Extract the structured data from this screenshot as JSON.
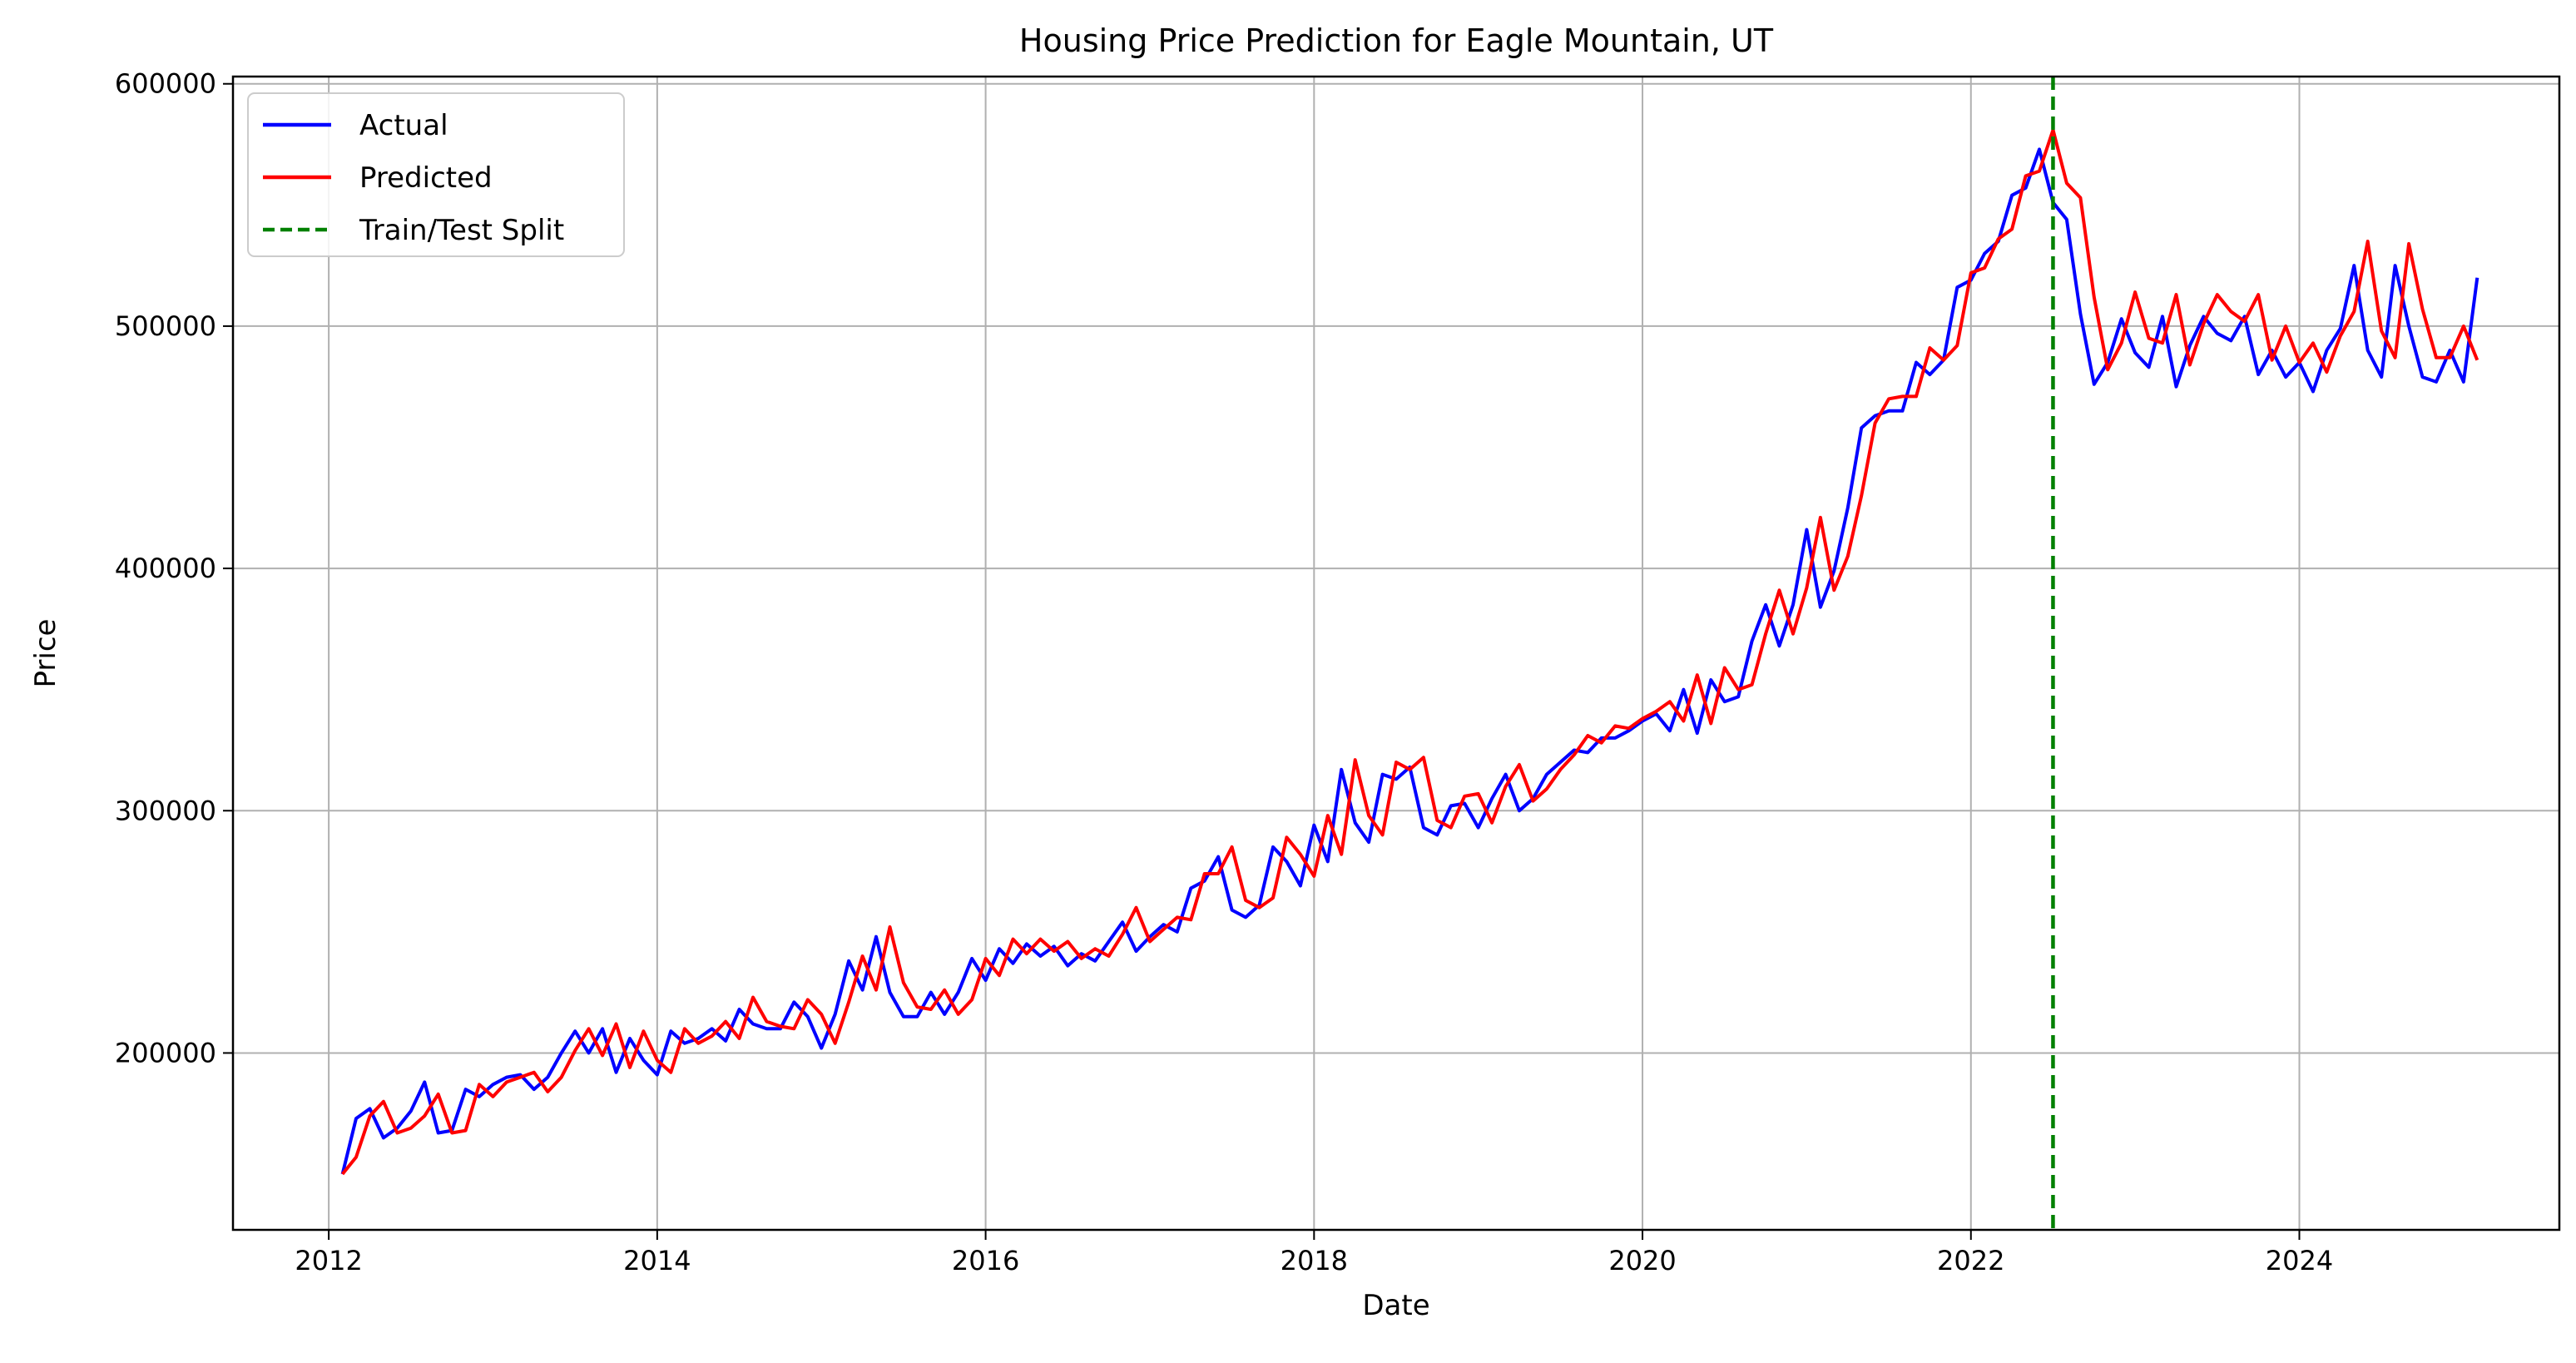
{
  "chart_data": {
    "type": "line",
    "title": "Housing Price Prediction for Eagle Mountain, UT",
    "xlabel": "Date",
    "ylabel": "Price",
    "xlim": [
      "2011-06",
      "2025-08"
    ],
    "ylim": [
      127000,
      603000
    ],
    "x_ticks": [
      "2012",
      "2014",
      "2016",
      "2018",
      "2020",
      "2022",
      "2024"
    ],
    "y_ticks": [
      200000,
      300000,
      400000,
      500000,
      600000
    ],
    "grid": true,
    "legend_position": "top-left",
    "split_line": {
      "name": "Train/Test Split",
      "x": "2022-07",
      "color": "#008000",
      "style": "dashed"
    },
    "series": [
      {
        "name": "Actual",
        "color": "#0000ff",
        "x": [
          "2012-02",
          "2012-03",
          "2012-04",
          "2012-05",
          "2012-06",
          "2012-07",
          "2012-08",
          "2012-09",
          "2012-10",
          "2012-11",
          "2012-12",
          "2013-01",
          "2013-02",
          "2013-03",
          "2013-04",
          "2013-05",
          "2013-06",
          "2013-07",
          "2013-08",
          "2013-09",
          "2013-10",
          "2013-11",
          "2013-12",
          "2014-01",
          "2014-02",
          "2014-03",
          "2014-04",
          "2014-05",
          "2014-06",
          "2014-07",
          "2014-08",
          "2014-09",
          "2014-10",
          "2014-11",
          "2014-12",
          "2015-01",
          "2015-02",
          "2015-03",
          "2015-04",
          "2015-05",
          "2015-06",
          "2015-07",
          "2015-08",
          "2015-09",
          "2015-10",
          "2015-11",
          "2015-12",
          "2016-01",
          "2016-02",
          "2016-03",
          "2016-04",
          "2016-05",
          "2016-06",
          "2016-07",
          "2016-08",
          "2016-09",
          "2016-10",
          "2016-11",
          "2016-12",
          "2017-01",
          "2017-02",
          "2017-03",
          "2017-04",
          "2017-05",
          "2017-06",
          "2017-07",
          "2017-08",
          "2017-09",
          "2017-10",
          "2017-11",
          "2017-12",
          "2018-01",
          "2018-02",
          "2018-03",
          "2018-04",
          "2018-05",
          "2018-06",
          "2018-07",
          "2018-08",
          "2018-09",
          "2018-10",
          "2018-11",
          "2018-12",
          "2019-01",
          "2019-02",
          "2019-03",
          "2019-04",
          "2019-05",
          "2019-06",
          "2019-07",
          "2019-08",
          "2019-09",
          "2019-10",
          "2019-11",
          "2019-12",
          "2020-01",
          "2020-02",
          "2020-03",
          "2020-04",
          "2020-05",
          "2020-06",
          "2020-07",
          "2020-08",
          "2020-09",
          "2020-10",
          "2020-11",
          "2020-12",
          "2021-01",
          "2021-02",
          "2021-03",
          "2021-04",
          "2021-05",
          "2021-06",
          "2021-07",
          "2021-08",
          "2021-09",
          "2021-10",
          "2021-11",
          "2021-12",
          "2022-01",
          "2022-02",
          "2022-03",
          "2022-04",
          "2022-05",
          "2022-06",
          "2022-07",
          "2022-08",
          "2022-09",
          "2022-10",
          "2022-11",
          "2022-12",
          "2023-01",
          "2023-02",
          "2023-03",
          "2023-04",
          "2023-05",
          "2023-06",
          "2023-07",
          "2023-08",
          "2023-09",
          "2023-10",
          "2023-11",
          "2023-12",
          "2024-01",
          "2024-02",
          "2024-03",
          "2024-04",
          "2024-05",
          "2024-06",
          "2024-07",
          "2024-08",
          "2024-09",
          "2024-10",
          "2024-11",
          "2024-12",
          "2025-01",
          "2025-02"
        ],
        "values": [
          150000,
          173000,
          177000,
          165000,
          169000,
          176000,
          188000,
          167000,
          168000,
          185000,
          182000,
          187000,
          190000,
          191000,
          185000,
          190000,
          200000,
          209000,
          200000,
          210000,
          192000,
          206000,
          197000,
          191000,
          209000,
          204000,
          206000,
          210000,
          205000,
          218000,
          212000,
          210000,
          210000,
          221000,
          215000,
          202000,
          216000,
          238000,
          226000,
          248000,
          225000,
          215000,
          215000,
          225000,
          216000,
          225000,
          239000,
          230000,
          243000,
          237000,
          245000,
          240000,
          244000,
          236000,
          241000,
          238000,
          246000,
          254000,
          242000,
          248000,
          253000,
          250000,
          268000,
          271000,
          281000,
          259000,
          256000,
          261000,
          285000,
          279000,
          269000,
          294000,
          279000,
          317000,
          295000,
          287000,
          315000,
          313000,
          318000,
          293000,
          290000,
          302000,
          303000,
          293000,
          305000,
          315000,
          300000,
          305000,
          315000,
          320000,
          325000,
          324000,
          330000,
          330000,
          333000,
          337000,
          340000,
          333000,
          350000,
          332000,
          354000,
          345000,
          347000,
          370000,
          385000,
          368000,
          385000,
          416000,
          384000,
          399000,
          425000,
          458000,
          463000,
          465000,
          465000,
          485000,
          480000,
          486000,
          516000,
          519000,
          530000,
          535000,
          554000,
          557000,
          573000,
          551000,
          544000,
          505000,
          476000,
          485000,
          503000,
          489000,
          483000,
          504000,
          475000,
          492000,
          504000,
          497000,
          494000,
          504000,
          480000,
          490000,
          479000,
          485000,
          473000,
          490000,
          499000,
          525000,
          490000,
          479000,
          525000,
          500000,
          479000,
          477000,
          490000,
          477000,
          520000
        ]
      },
      {
        "name": "Predicted",
        "color": "#ff0000",
        "x": [
          "2012-02",
          "2012-03",
          "2012-04",
          "2012-05",
          "2012-06",
          "2012-07",
          "2012-08",
          "2012-09",
          "2012-10",
          "2012-11",
          "2012-12",
          "2013-01",
          "2013-02",
          "2013-03",
          "2013-04",
          "2013-05",
          "2013-06",
          "2013-07",
          "2013-08",
          "2013-09",
          "2013-10",
          "2013-11",
          "2013-12",
          "2014-01",
          "2014-02",
          "2014-03",
          "2014-04",
          "2014-05",
          "2014-06",
          "2014-07",
          "2014-08",
          "2014-09",
          "2014-10",
          "2014-11",
          "2014-12",
          "2015-01",
          "2015-02",
          "2015-03",
          "2015-04",
          "2015-05",
          "2015-06",
          "2015-07",
          "2015-08",
          "2015-09",
          "2015-10",
          "2015-11",
          "2015-12",
          "2016-01",
          "2016-02",
          "2016-03",
          "2016-04",
          "2016-05",
          "2016-06",
          "2016-07",
          "2016-08",
          "2016-09",
          "2016-10",
          "2016-11",
          "2016-12",
          "2017-01",
          "2017-02",
          "2017-03",
          "2017-04",
          "2017-05",
          "2017-06",
          "2017-07",
          "2017-08",
          "2017-09",
          "2017-10",
          "2017-11",
          "2017-12",
          "2018-01",
          "2018-02",
          "2018-03",
          "2018-04",
          "2018-05",
          "2018-06",
          "2018-07",
          "2018-08",
          "2018-09",
          "2018-10",
          "2018-11",
          "2018-12",
          "2019-01",
          "2019-02",
          "2019-03",
          "2019-04",
          "2019-05",
          "2019-06",
          "2019-07",
          "2019-08",
          "2019-09",
          "2019-10",
          "2019-11",
          "2019-12",
          "2020-01",
          "2020-02",
          "2020-03",
          "2020-04",
          "2020-05",
          "2020-06",
          "2020-07",
          "2020-08",
          "2020-09",
          "2020-10",
          "2020-11",
          "2020-12",
          "2021-01",
          "2021-02",
          "2021-03",
          "2021-04",
          "2021-05",
          "2021-06",
          "2021-07",
          "2021-08",
          "2021-09",
          "2021-10",
          "2021-11",
          "2021-12",
          "2022-01",
          "2022-02",
          "2022-03",
          "2022-04",
          "2022-05",
          "2022-06",
          "2022-07",
          "2022-08",
          "2022-09",
          "2022-10",
          "2022-11",
          "2022-12",
          "2023-01",
          "2023-02",
          "2023-03",
          "2023-04",
          "2023-05",
          "2023-06",
          "2023-07",
          "2023-08",
          "2023-09",
          "2023-10",
          "2023-11",
          "2023-12",
          "2024-01",
          "2024-02",
          "2024-03",
          "2024-04",
          "2024-05",
          "2024-06",
          "2024-07",
          "2024-08",
          "2024-09",
          "2024-10",
          "2024-11",
          "2024-12",
          "2025-01",
          "2025-02"
        ],
        "values": [
          150000,
          157000,
          174000,
          180000,
          167000,
          169000,
          174000,
          183000,
          167000,
          168000,
          187000,
          182000,
          188000,
          190000,
          192000,
          184000,
          190000,
          201000,
          210000,
          199000,
          212000,
          194000,
          209000,
          197000,
          192000,
          210000,
          204000,
          207000,
          213000,
          206000,
          223000,
          213000,
          211000,
          210000,
          222000,
          216000,
          204000,
          221000,
          240000,
          226000,
          252000,
          229000,
          219000,
          218000,
          226000,
          216000,
          222000,
          239000,
          232000,
          247000,
          241000,
          247000,
          242000,
          246000,
          239000,
          243000,
          240000,
          249000,
          260000,
          246000,
          251000,
          256000,
          255000,
          274000,
          274000,
          285000,
          263000,
          260000,
          264000,
          289000,
          282000,
          273000,
          298000,
          282000,
          321000,
          298000,
          290000,
          320000,
          317000,
          322000,
          296000,
          293000,
          306000,
          307000,
          295000,
          310000,
          319000,
          304000,
          309000,
          317000,
          323000,
          331000,
          328000,
          335000,
          334000,
          338000,
          341000,
          345000,
          337000,
          356000,
          336000,
          359000,
          350000,
          352000,
          373000,
          391000,
          373000,
          392000,
          421000,
          391000,
          405000,
          430000,
          460000,
          470000,
          471000,
          471000,
          491000,
          486000,
          492000,
          522000,
          524000,
          536000,
          540000,
          562000,
          564000,
          581000,
          559000,
          553000,
          512000,
          482000,
          493000,
          514000,
          495000,
          493000,
          513000,
          484000,
          501000,
          513000,
          506000,
          502000,
          513000,
          486000,
          500000,
          485000,
          493000,
          481000,
          496000,
          506000,
          535000,
          498000,
          487000,
          534000,
          507000,
          487000,
          487000,
          500000,
          486000
        ]
      }
    ]
  }
}
